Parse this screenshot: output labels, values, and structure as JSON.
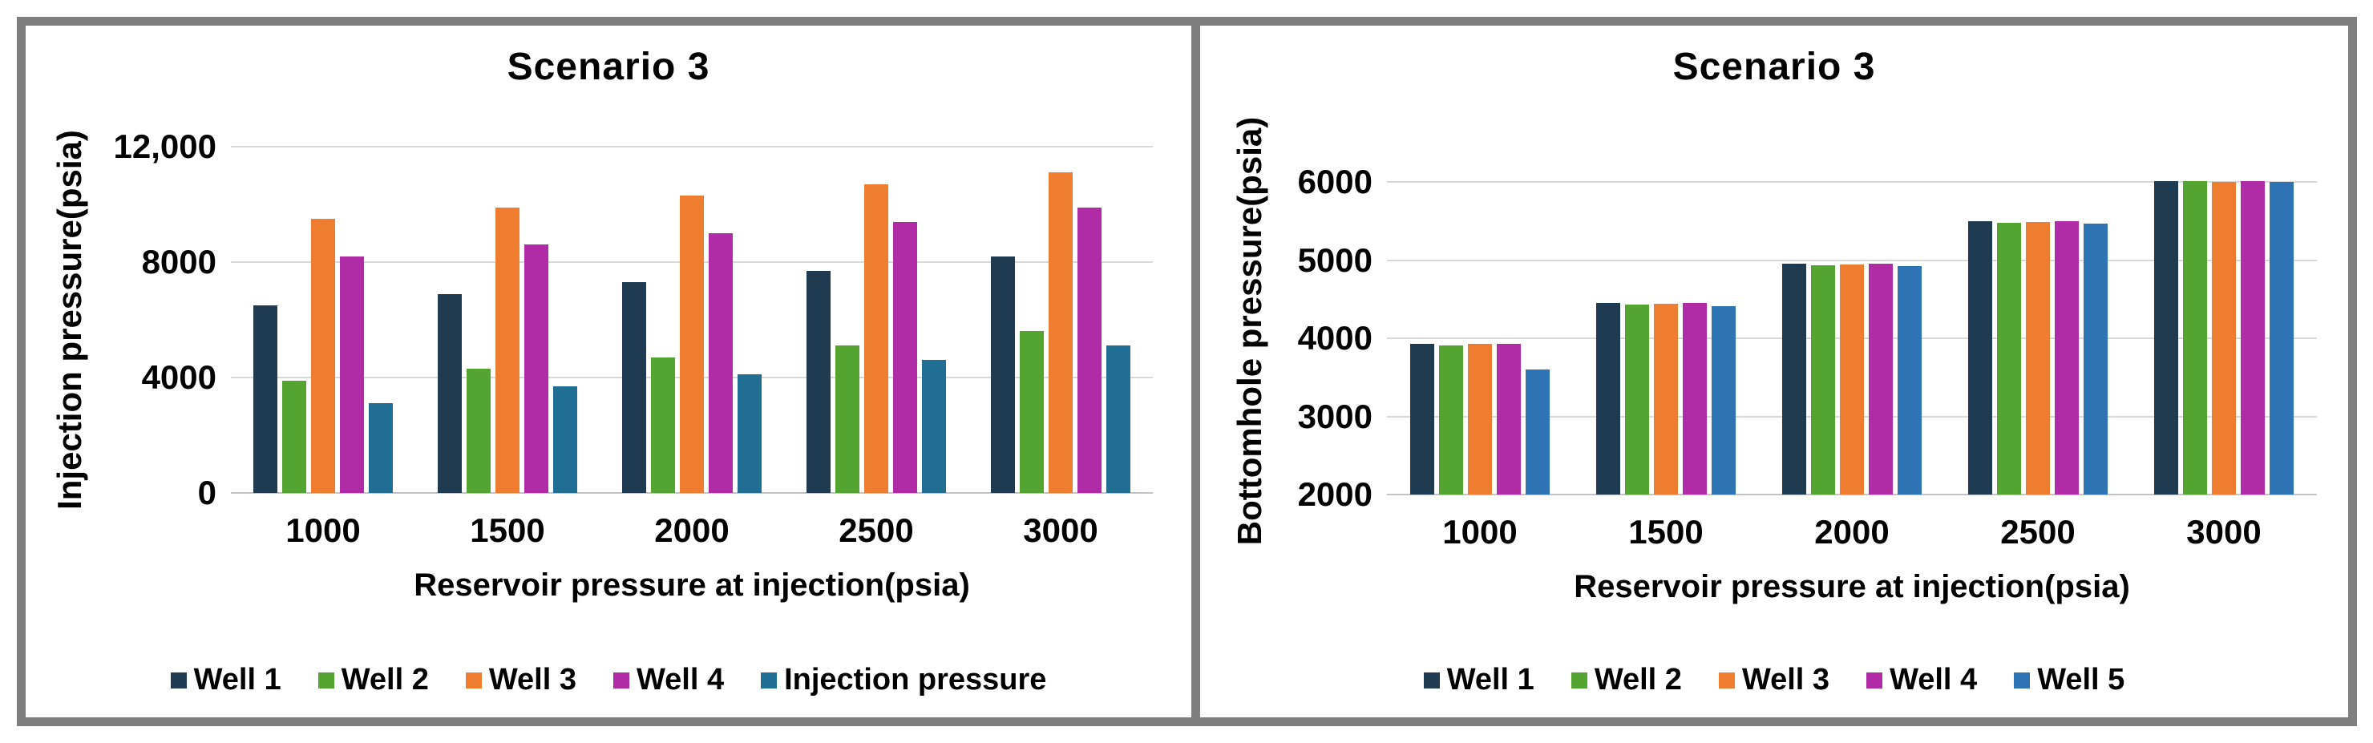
{
  "style": {
    "frame_color": "#7f7f7f",
    "grid_color": "#d9d9d9",
    "axis_line_color": "#c3c3c3",
    "text_color": "#000000",
    "background": "#ffffff"
  },
  "chart_data": [
    {
      "type": "bar",
      "title": "Scenario 3",
      "xlabel": "Reservoir pressure at injection(psia)",
      "ylabel": "Injection pressure(psia)",
      "categories": [
        "1000",
        "1500",
        "2000",
        "2500",
        "3000"
      ],
      "series": [
        {
          "name": "Well 1",
          "color": "#1e3b52",
          "values": [
            6500,
            6900,
            7300,
            7700,
            8200
          ]
        },
        {
          "name": "Well 2",
          "color": "#54a431",
          "values": [
            3900,
            4300,
            4700,
            5100,
            5600
          ]
        },
        {
          "name": "Well 3",
          "color": "#ee7d2f",
          "values": [
            9500,
            9900,
            10300,
            10700,
            11100
          ]
        },
        {
          "name": "Well 4",
          "color": "#b02ba5",
          "values": [
            8200,
            8600,
            9000,
            9400,
            9900
          ]
        },
        {
          "name": "Injection pressure",
          "color": "#216e94",
          "values": [
            3100,
            3700,
            4100,
            4600,
            5100
          ]
        }
      ],
      "ylim": [
        0,
        12000
      ],
      "yticks": [
        {
          "value": 0,
          "label": "0"
        },
        {
          "value": 4000,
          "label": "4000"
        },
        {
          "value": 8000,
          "label": "8000"
        },
        {
          "value": 12000,
          "label": "12,000"
        }
      ],
      "grid": true,
      "legend_position": "bottom"
    },
    {
      "type": "bar",
      "title": "Scenario 3",
      "xlabel": "Reservoir pressure at injection(psia)",
      "ylabel": "Bottomhole pressure(psia)",
      "categories": [
        "1000",
        "1500",
        "2000",
        "2500",
        "3000"
      ],
      "series": [
        {
          "name": "Well 1",
          "color": "#1e3b52",
          "values": [
            3930,
            4450,
            4960,
            5500,
            6020
          ]
        },
        {
          "name": "Well 2",
          "color": "#54a431",
          "values": [
            3910,
            4430,
            4940,
            5480,
            6020
          ]
        },
        {
          "name": "Well 3",
          "color": "#ee7d2f",
          "values": [
            3930,
            4440,
            4950,
            5490,
            6010
          ]
        },
        {
          "name": "Well 4",
          "color": "#b02ba5",
          "values": [
            3930,
            4450,
            4960,
            5500,
            6020
          ]
        },
        {
          "name": "Well 5",
          "color": "#2e74b5",
          "values": [
            3600,
            4410,
            4930,
            5470,
            6010
          ]
        }
      ],
      "ylim": [
        2000,
        6200
      ],
      "yticks": [
        {
          "value": 2000,
          "label": "2000"
        },
        {
          "value": 3000,
          "label": "3000"
        },
        {
          "value": 4000,
          "label": "4000"
        },
        {
          "value": 5000,
          "label": "5000"
        },
        {
          "value": 6000,
          "label": "6000"
        }
      ],
      "grid": true,
      "legend_position": "bottom"
    }
  ]
}
